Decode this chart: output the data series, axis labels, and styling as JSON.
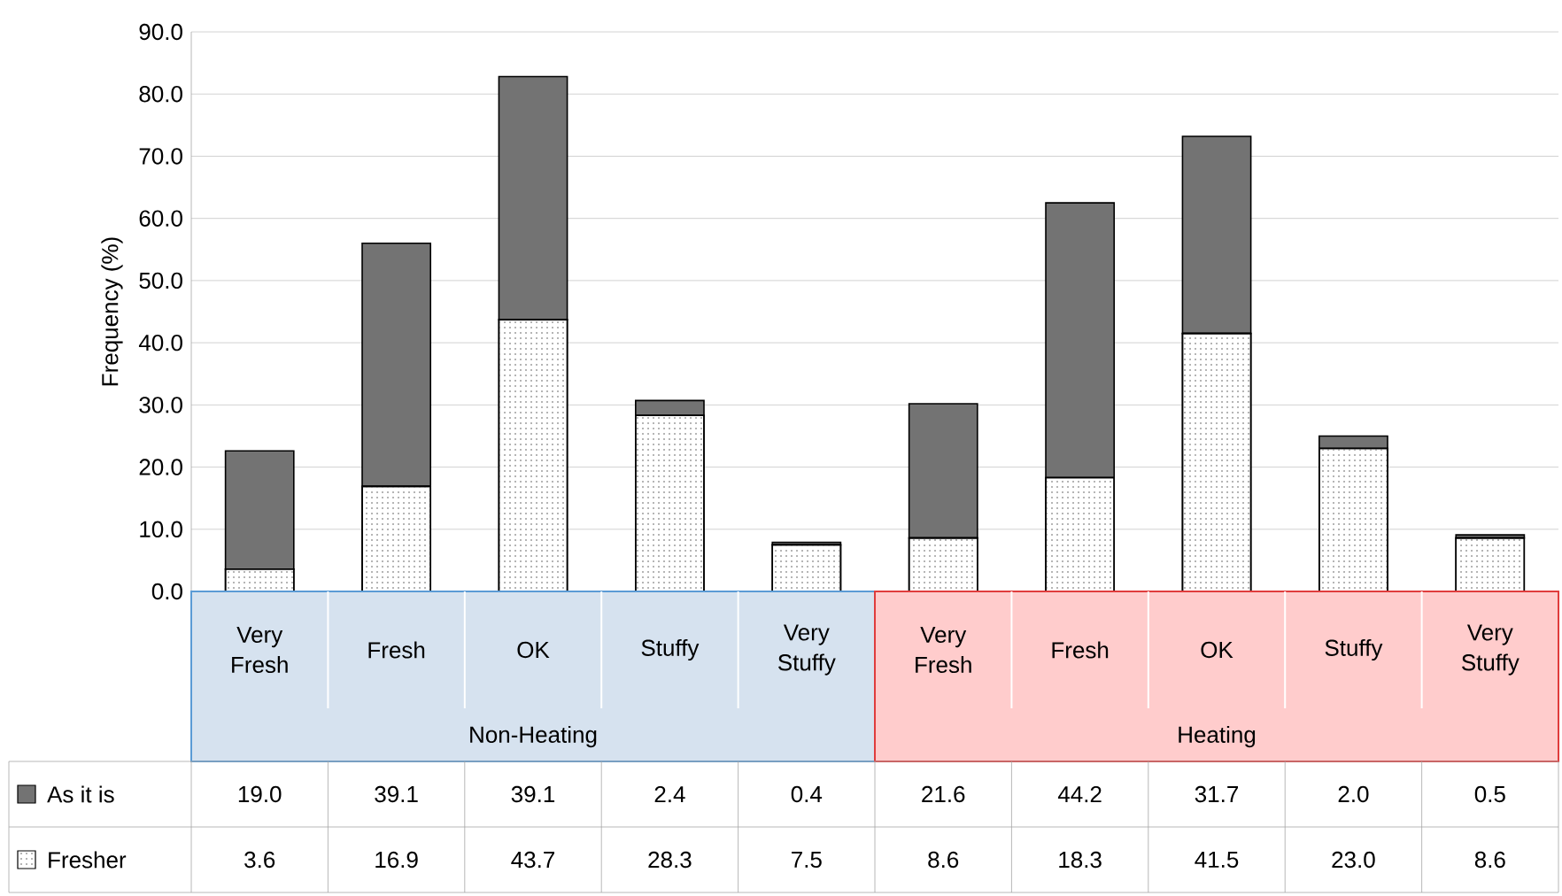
{
  "chart_data": {
    "type": "bar",
    "stacked": true,
    "ylabel": "Frequency (%)",
    "categories": [
      "Very Fresh",
      "Fresh",
      "OK",
      "Stuffy",
      "Very Stuffy",
      "Very Fresh",
      "Fresh",
      "OK",
      "Stuffy",
      "Very Stuffy"
    ],
    "annotations": [
      "Non-Heating",
      "Heating"
    ],
    "series": [
      {
        "name": "Fresher",
        "color": "#ffffff",
        "values": [
          3.6,
          16.9,
          43.7,
          28.3,
          7.5,
          8.6,
          18.3,
          41.5,
          23.0,
          8.6
        ],
        "value_labels": [
          "3.6",
          "16.9",
          "43.7",
          "28.3",
          "7.5",
          "8.6",
          "18.3",
          "41.5",
          "23.0",
          "8.6"
        ]
      },
      {
        "name": "As it is",
        "color": "#737373",
        "values": [
          19.0,
          39.1,
          39.1,
          2.4,
          0.4,
          21.6,
          44.2,
          31.7,
          2.0,
          0.5
        ],
        "value_labels": [
          "19.0",
          "39.1",
          "39.1",
          "2.4",
          "0.4",
          "21.6",
          "44.2",
          "31.7",
          "2.0",
          "0.5"
        ]
      }
    ],
    "ylim": [
      0,
      90
    ],
    "yticks": [
      {
        "value": 0,
        "label": "0.0"
      },
      {
        "value": 10,
        "label": "10.0"
      },
      {
        "value": 20,
        "label": "20.0"
      },
      {
        "value": 30,
        "label": "30.0"
      },
      {
        "value": 40,
        "label": "40.0"
      },
      {
        "value": 50,
        "label": "50.0"
      },
      {
        "value": 60,
        "label": "60.0"
      },
      {
        "value": 70,
        "label": "70.0"
      },
      {
        "value": 80,
        "label": "80.0"
      },
      {
        "value": 90,
        "label": "90.0"
      }
    ],
    "grid": "y",
    "legend": "bottom left"
  }
}
